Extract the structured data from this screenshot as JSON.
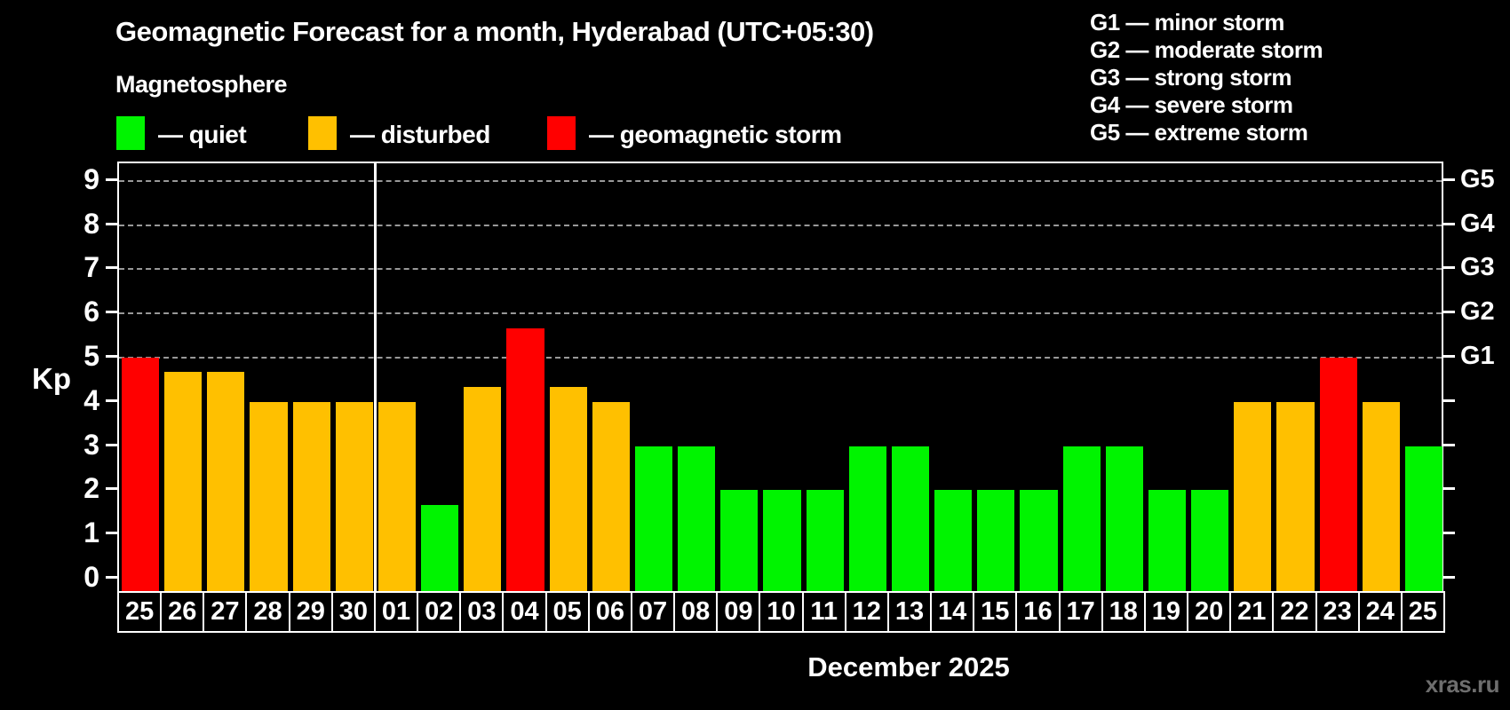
{
  "header": {
    "title": "Geomagnetic Forecast for a month, Hyderabad (UTC+05:30)",
    "subtitle": "Magnetosphere"
  },
  "kp_legend": [
    {
      "label": "— quiet",
      "status": "quiet",
      "color": "#00f400"
    },
    {
      "label": "— disturbed",
      "status": "disturbed",
      "color": "#ffc000"
    },
    {
      "label": "— geomagnetic storm",
      "status": "storm",
      "color": "#ff0000"
    }
  ],
  "g_legend": [
    "G1 — minor storm",
    "G2 — moderate storm",
    "G3 — strong storm",
    "G4 — severe storm",
    "G5 — extreme storm"
  ],
  "watermark": "xras.ru",
  "chart_data": {
    "type": "bar",
    "title": "Geomagnetic Forecast for a month, Hyderabad (UTC+05:30)",
    "xlabel": "December 2025",
    "ylabel": "Kp",
    "ylim": [
      0,
      9
    ],
    "yticks": [
      0,
      1,
      2,
      3,
      4,
      5,
      6,
      7,
      8,
      9
    ],
    "gridlines_at": [
      5,
      6,
      7,
      8,
      9
    ],
    "grid": "dashed, horizontal, Kp 5-9 only",
    "legend_position": "top-left and top-right",
    "right_axis_labels": [
      {
        "kp": 5,
        "label": "G1"
      },
      {
        "kp": 6,
        "label": "G2"
      },
      {
        "kp": 7,
        "label": "G3"
      },
      {
        "kp": 8,
        "label": "G4"
      },
      {
        "kp": 9,
        "label": "G5"
      }
    ],
    "month_separator_after_index": 5,
    "status_colors": {
      "quiet": "#00f400",
      "disturbed": "#ffc000",
      "storm": "#ff0000"
    },
    "bars": [
      {
        "day": "25",
        "kp": 5.0,
        "status": "storm"
      },
      {
        "day": "26",
        "kp": 4.67,
        "status": "disturbed"
      },
      {
        "day": "27",
        "kp": 4.67,
        "status": "disturbed"
      },
      {
        "day": "28",
        "kp": 4.0,
        "status": "disturbed"
      },
      {
        "day": "29",
        "kp": 4.0,
        "status": "disturbed"
      },
      {
        "day": "30",
        "kp": 4.0,
        "status": "disturbed"
      },
      {
        "day": "01",
        "kp": 4.0,
        "status": "disturbed"
      },
      {
        "day": "02",
        "kp": 1.67,
        "status": "quiet"
      },
      {
        "day": "03",
        "kp": 4.33,
        "status": "disturbed"
      },
      {
        "day": "04",
        "kp": 5.67,
        "status": "storm"
      },
      {
        "day": "05",
        "kp": 4.33,
        "status": "disturbed"
      },
      {
        "day": "06",
        "kp": 4.0,
        "status": "disturbed"
      },
      {
        "day": "07",
        "kp": 3.0,
        "status": "quiet"
      },
      {
        "day": "08",
        "kp": 3.0,
        "status": "quiet"
      },
      {
        "day": "09",
        "kp": 2.0,
        "status": "quiet"
      },
      {
        "day": "10",
        "kp": 2.0,
        "status": "quiet"
      },
      {
        "day": "11",
        "kp": 2.0,
        "status": "quiet"
      },
      {
        "day": "12",
        "kp": 3.0,
        "status": "quiet"
      },
      {
        "day": "13",
        "kp": 3.0,
        "status": "quiet"
      },
      {
        "day": "14",
        "kp": 2.0,
        "status": "quiet"
      },
      {
        "day": "15",
        "kp": 2.0,
        "status": "quiet"
      },
      {
        "day": "16",
        "kp": 2.0,
        "status": "quiet"
      },
      {
        "day": "17",
        "kp": 3.0,
        "status": "quiet"
      },
      {
        "day": "18",
        "kp": 3.0,
        "status": "quiet"
      },
      {
        "day": "19",
        "kp": 2.0,
        "status": "quiet"
      },
      {
        "day": "20",
        "kp": 2.0,
        "status": "quiet"
      },
      {
        "day": "21",
        "kp": 4.0,
        "status": "disturbed"
      },
      {
        "day": "22",
        "kp": 4.0,
        "status": "disturbed"
      },
      {
        "day": "23",
        "kp": 5.0,
        "status": "storm"
      },
      {
        "day": "24",
        "kp": 4.0,
        "status": "disturbed"
      },
      {
        "day": "25",
        "kp": 3.0,
        "status": "quiet"
      }
    ]
  }
}
